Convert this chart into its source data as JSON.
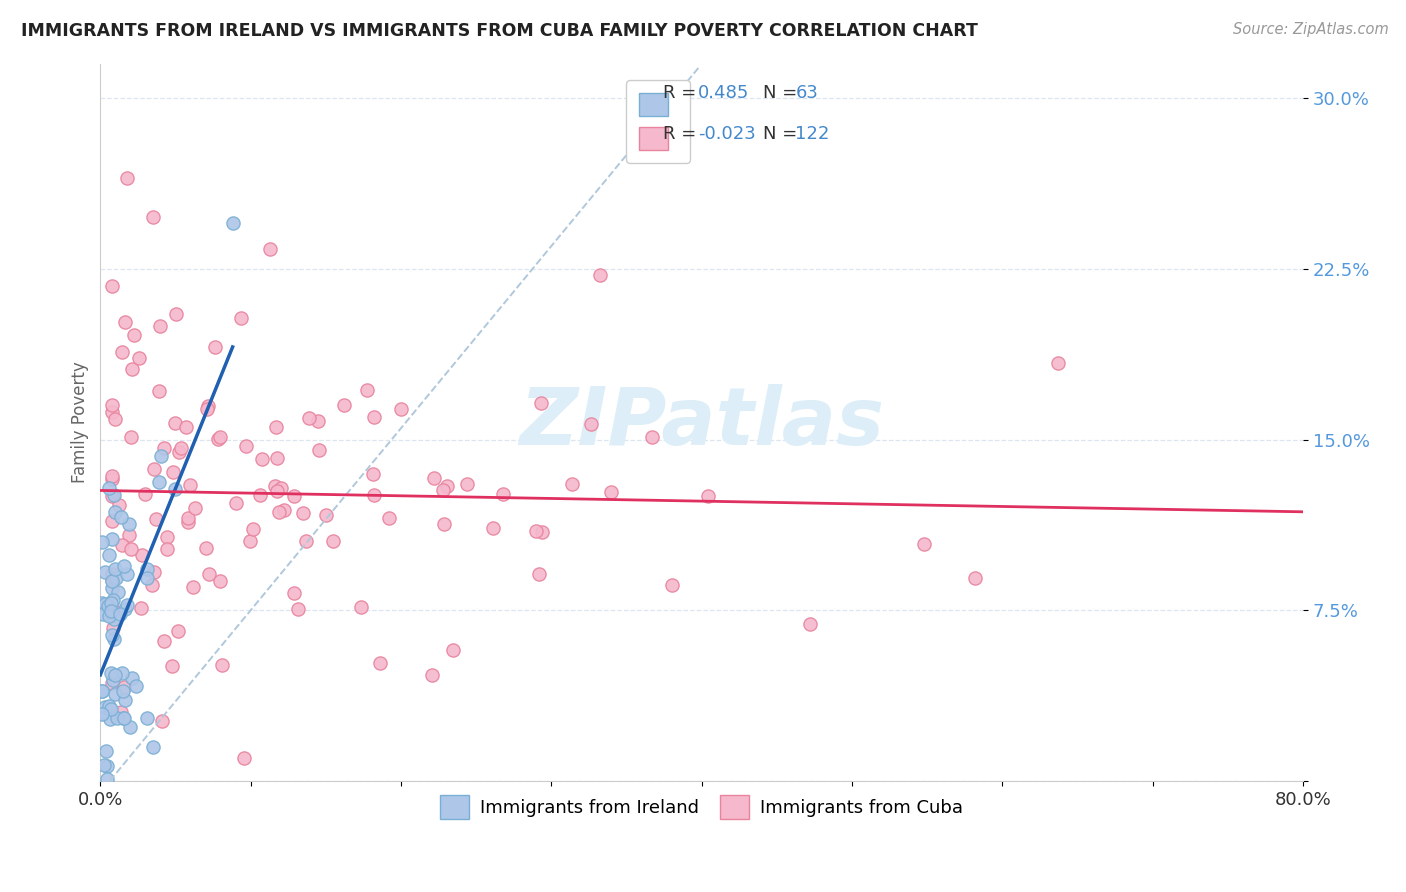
{
  "title": "IMMIGRANTS FROM IRELAND VS IMMIGRANTS FROM CUBA FAMILY POVERTY CORRELATION CHART",
  "source": "Source: ZipAtlas.com",
  "ylabel": "Family Poverty",
  "xlim": [
    0.0,
    0.8
  ],
  "ylim": [
    0.0,
    0.315
  ],
  "ireland_R": 0.485,
  "ireland_N": 63,
  "cuba_R": -0.023,
  "cuba_N": 122,
  "ireland_color": "#aec6e8",
  "ireland_edge": "#7aafd4",
  "cuba_color": "#f5b8cc",
  "cuba_edge": "#e8849e",
  "ireland_line_color": "#2060b0",
  "cuba_line_color": "#e03060",
  "dashed_line_color": "#b0c8dc",
  "background_color": "#ffffff",
  "grid_color": "#dde6f0",
  "ytick_color": "#5599dd",
  "xtick_color": "#333333",
  "watermark_color": "#ddeef8",
  "legend_edge_color": "#cccccc",
  "legend_text_color": "#333333",
  "legend_value_color": "#4488cc"
}
